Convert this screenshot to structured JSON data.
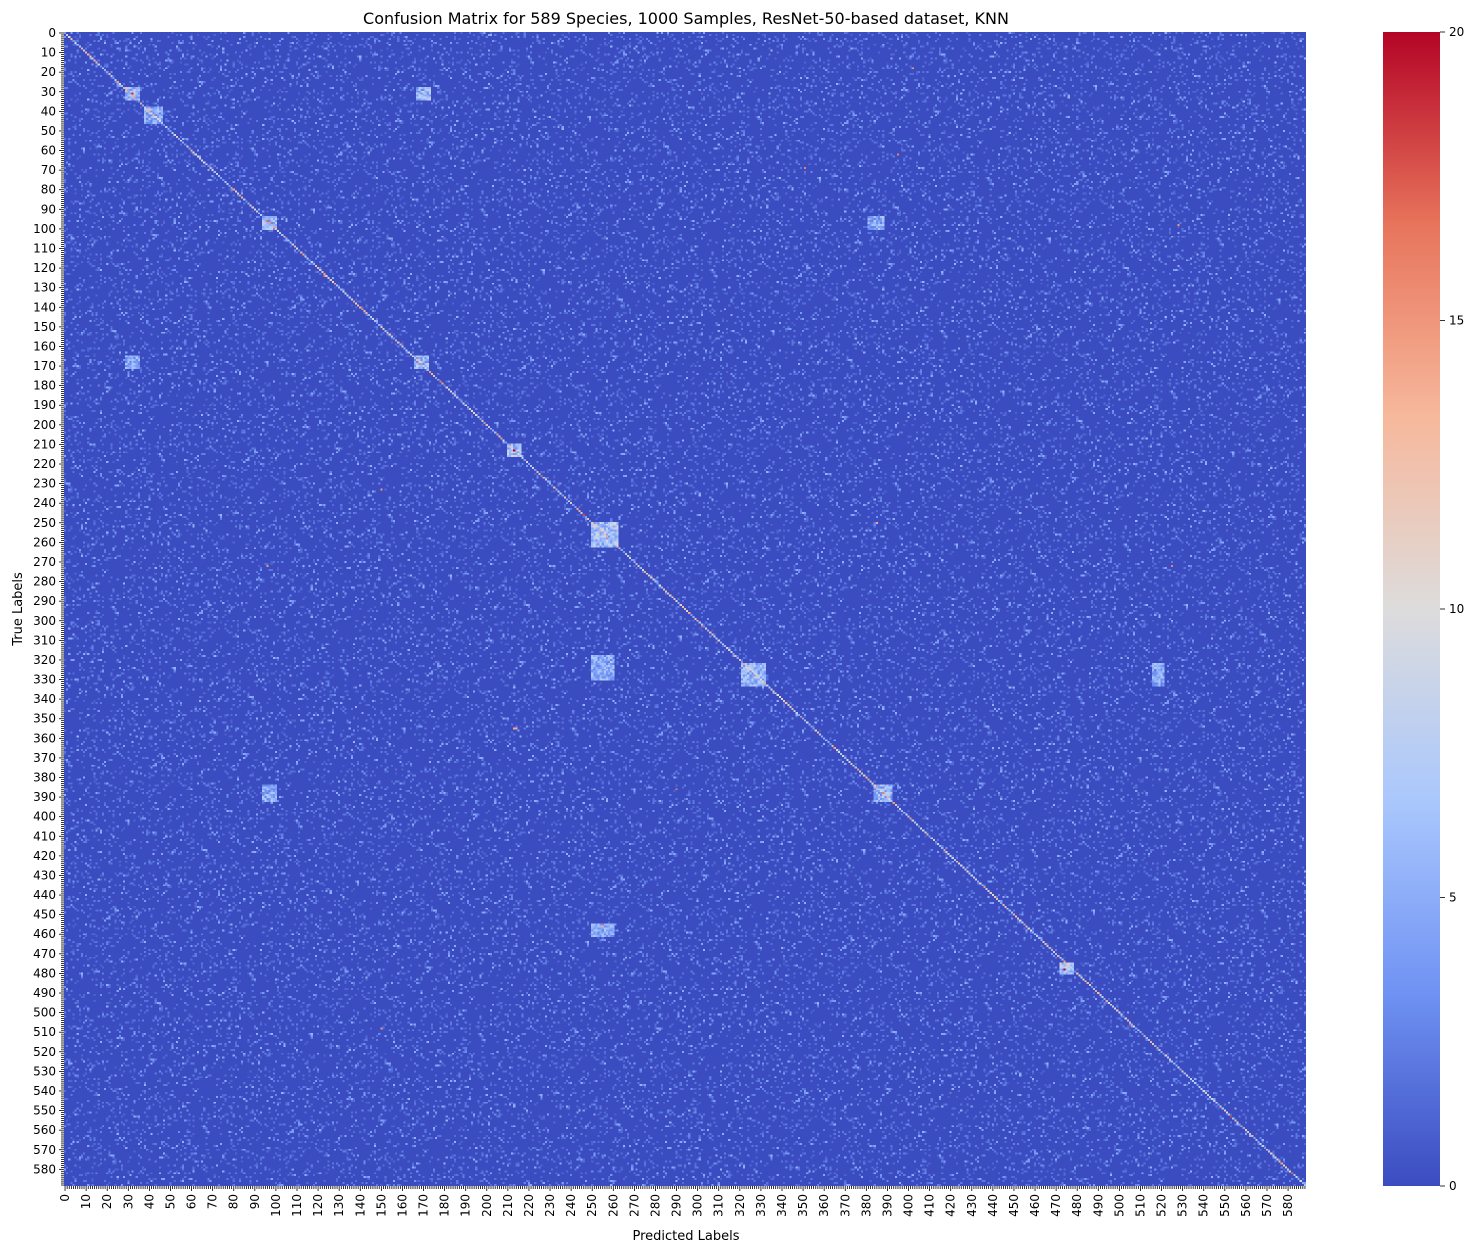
{
  "chart_data": {
    "type": "heatmap",
    "title": "Confusion Matrix for 589 Species, 1000 Samples, ResNet-50-based dataset, KNN",
    "xlabel": "Predicted Labels",
    "ylabel": "True Labels",
    "n_classes": 589,
    "value_range": [
      0,
      20
    ],
    "colormap": "coolwarm",
    "colormap_stops": [
      "#3b4cc0",
      "#6f92f3",
      "#aac7fd",
      "#dddcdc",
      "#f7b89c",
      "#e7745b",
      "#b40426"
    ],
    "colorbar_ticks": [
      0,
      5,
      10,
      15,
      20
    ],
    "x_tick_labels": [
      "0",
      "10",
      "20",
      "30",
      "40",
      "50",
      "60",
      "70",
      "80",
      "90",
      "100",
      "110",
      "120",
      "130",
      "140",
      "150",
      "160",
      "170",
      "180",
      "190",
      "200",
      "210",
      "220",
      "230",
      "240",
      "250",
      "260",
      "270",
      "280",
      "290",
      "300",
      "310",
      "320",
      "330",
      "340",
      "350",
      "360",
      "370",
      "380",
      "390",
      "400",
      "410",
      "420",
      "430",
      "440",
      "450",
      "460",
      "470",
      "480",
      "490",
      "500",
      "510",
      "520",
      "530",
      "540",
      "550",
      "560",
      "570",
      "580"
    ],
    "y_tick_labels": [
      "0",
      "10",
      "20",
      "30",
      "40",
      "50",
      "60",
      "70",
      "80",
      "90",
      "100",
      "110",
      "120",
      "130",
      "140",
      "150",
      "160",
      "170",
      "180",
      "190",
      "200",
      "210",
      "220",
      "230",
      "240",
      "250",
      "260",
      "270",
      "280",
      "290",
      "300",
      "310",
      "320",
      "330",
      "340",
      "350",
      "360",
      "370",
      "380",
      "390",
      "400",
      "410",
      "420",
      "430",
      "440",
      "450",
      "460",
      "470",
      "480",
      "490",
      "500",
      "510",
      "520",
      "530",
      "540",
      "550",
      "560",
      "570",
      "580"
    ],
    "background_level": 1,
    "diagonal_level": 10,
    "hotspots": [
      {
        "true": 31,
        "pred": 32,
        "value": 19
      },
      {
        "true": 30,
        "pred": 170,
        "value": 9
      },
      {
        "true": 96,
        "pred": 96,
        "value": 17
      },
      {
        "true": 169,
        "pred": 169,
        "value": 15
      },
      {
        "true": 213,
        "pred": 213,
        "value": 20
      },
      {
        "true": 226,
        "pred": 226,
        "value": 17
      },
      {
        "true": 246,
        "pred": 246,
        "value": 18
      },
      {
        "true": 256,
        "pred": 256,
        "value": 12
      },
      {
        "true": 303,
        "pred": 302,
        "value": 17
      },
      {
        "true": 325,
        "pred": 325,
        "value": 11
      },
      {
        "true": 388,
        "pred": 388,
        "value": 16
      },
      {
        "true": 478,
        "pred": 474,
        "value": 20
      },
      {
        "true": 506,
        "pred": 505,
        "value": 17
      },
      {
        "true": 553,
        "pred": 553,
        "value": 18
      },
      {
        "true": 582,
        "pred": 582,
        "value": 17
      },
      {
        "true": 272,
        "pred": 96,
        "value": 15
      },
      {
        "true": 233,
        "pred": 150,
        "value": 15
      },
      {
        "true": 69,
        "pred": 351,
        "value": 16
      },
      {
        "true": 98,
        "pred": 528,
        "value": 15
      },
      {
        "true": 355,
        "pred": 213,
        "value": 14
      },
      {
        "true": 355,
        "pred": 214,
        "value": 14
      },
      {
        "true": 386,
        "pred": 290,
        "value": 16
      },
      {
        "true": 508,
        "pred": 150,
        "value": 15
      },
      {
        "true": 272,
        "pred": 525,
        "value": 16
      },
      {
        "true": 250,
        "pred": 385,
        "value": 14
      },
      {
        "true": 456,
        "pred": 255,
        "value": 14
      },
      {
        "true": 124,
        "pred": 123,
        "value": 16
      },
      {
        "true": 178,
        "pred": 178,
        "value": 16
      },
      {
        "true": 62,
        "pred": 395,
        "value": 16
      },
      {
        "true": 18,
        "pred": 402,
        "value": 15
      }
    ],
    "blocks": [
      {
        "row0": 28,
        "row1": 34,
        "col0": 29,
        "col1": 35,
        "value": 7
      },
      {
        "row0": 28,
        "row1": 34,
        "col0": 167,
        "col1": 173,
        "value": 7
      },
      {
        "row0": 38,
        "row1": 46,
        "col0": 38,
        "col1": 46,
        "value": 6
      },
      {
        "row0": 94,
        "row1": 100,
        "col0": 94,
        "col1": 100,
        "value": 7
      },
      {
        "row0": 94,
        "row1": 100,
        "col0": 381,
        "col1": 388,
        "value": 6
      },
      {
        "row0": 165,
        "row1": 171,
        "col0": 29,
        "col1": 35,
        "value": 6
      },
      {
        "row0": 165,
        "row1": 171,
        "col0": 166,
        "col1": 172,
        "value": 7
      },
      {
        "row0": 210,
        "row1": 216,
        "col0": 210,
        "col1": 216,
        "value": 8
      },
      {
        "row0": 250,
        "row1": 262,
        "col0": 250,
        "col1": 262,
        "value": 8
      },
      {
        "row0": 318,
        "row1": 330,
        "col0": 250,
        "col1": 260,
        "value": 6
      },
      {
        "row0": 322,
        "row1": 333,
        "col0": 321,
        "col1": 332,
        "value": 7
      },
      {
        "row0": 322,
        "row1": 333,
        "col0": 516,
        "col1": 521,
        "value": 6
      },
      {
        "row0": 384,
        "row1": 392,
        "col0": 384,
        "col1": 392,
        "value": 7
      },
      {
        "row0": 384,
        "row1": 392,
        "col0": 94,
        "col1": 100,
        "value": 6
      },
      {
        "row0": 455,
        "row1": 461,
        "col0": 250,
        "col1": 260,
        "value": 6
      },
      {
        "row0": 475,
        "row1": 480,
        "col0": 472,
        "col1": 478,
        "value": 8
      }
    ]
  }
}
